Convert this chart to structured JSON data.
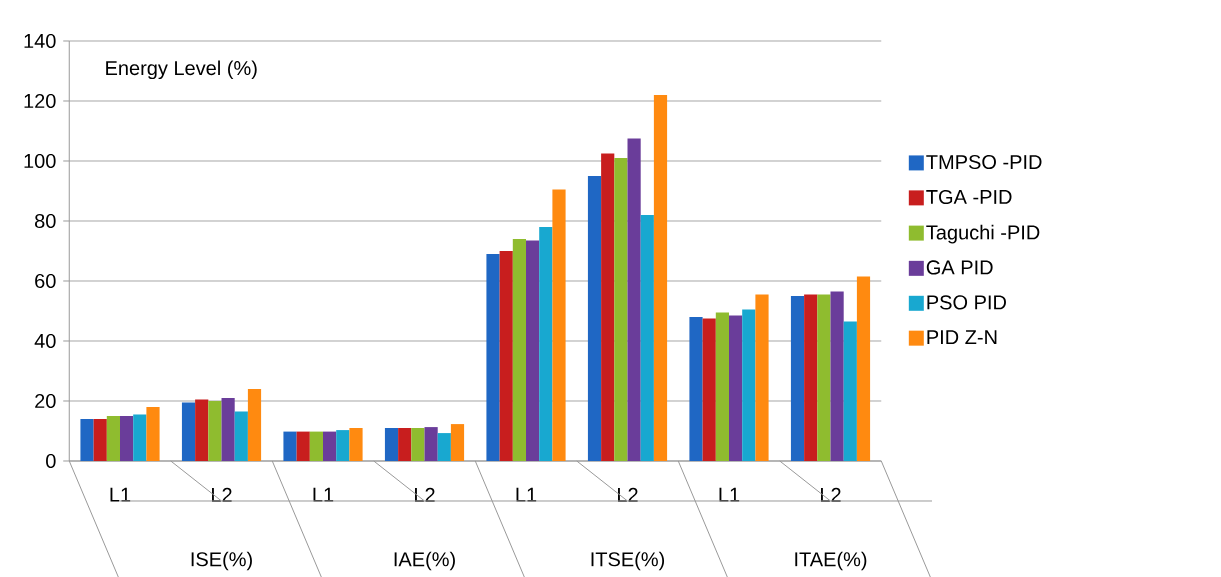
{
  "chart_data": {
    "type": "bar",
    "ylabel": "Energy Level (%)",
    "categories": [
      "L1",
      "L2",
      "L1",
      "L2",
      "L1",
      "L2",
      "L1",
      "L2"
    ],
    "annotations": [
      "ISE(%)",
      "IAE(%)",
      "ITSE(%)",
      "ITAE(%)"
    ],
    "series": [
      {
        "name": "TMPSO -PID",
        "color": "#1f67c4",
        "values": [
          14,
          19.5,
          9.8,
          11,
          69,
          95,
          48,
          55
        ]
      },
      {
        "name": "TGA -PID",
        "color": "#c81e1e",
        "values": [
          14,
          20.5,
          9.8,
          11,
          70,
          102.5,
          47.5,
          55.5
        ]
      },
      {
        "name": "Taguchi -PID",
        "color": "#8fbc2f",
        "values": [
          15,
          20,
          9.8,
          11,
          74,
          101,
          49.5,
          55.5
        ]
      },
      {
        "name": "GA PID",
        "color": "#6a3d9a",
        "values": [
          15,
          21,
          9.8,
          11.3,
          73.5,
          107.5,
          48.5,
          56.5
        ]
      },
      {
        "name": "PSO PID",
        "color": "#18a8d0",
        "values": [
          15.5,
          16.5,
          10.3,
          9.3,
          78,
          82,
          50.5,
          46.5
        ]
      },
      {
        "name": "PID Z-N",
        "color": "#ff8a10",
        "values": [
          18,
          24,
          11,
          12.3,
          90.5,
          122,
          55.5,
          61.5
        ]
      }
    ],
    "ylim": [
      0,
      140
    ],
    "yticks": [
      0,
      20,
      40,
      60,
      80,
      100,
      120,
      140
    ],
    "grid": "y",
    "legend": "right"
  }
}
